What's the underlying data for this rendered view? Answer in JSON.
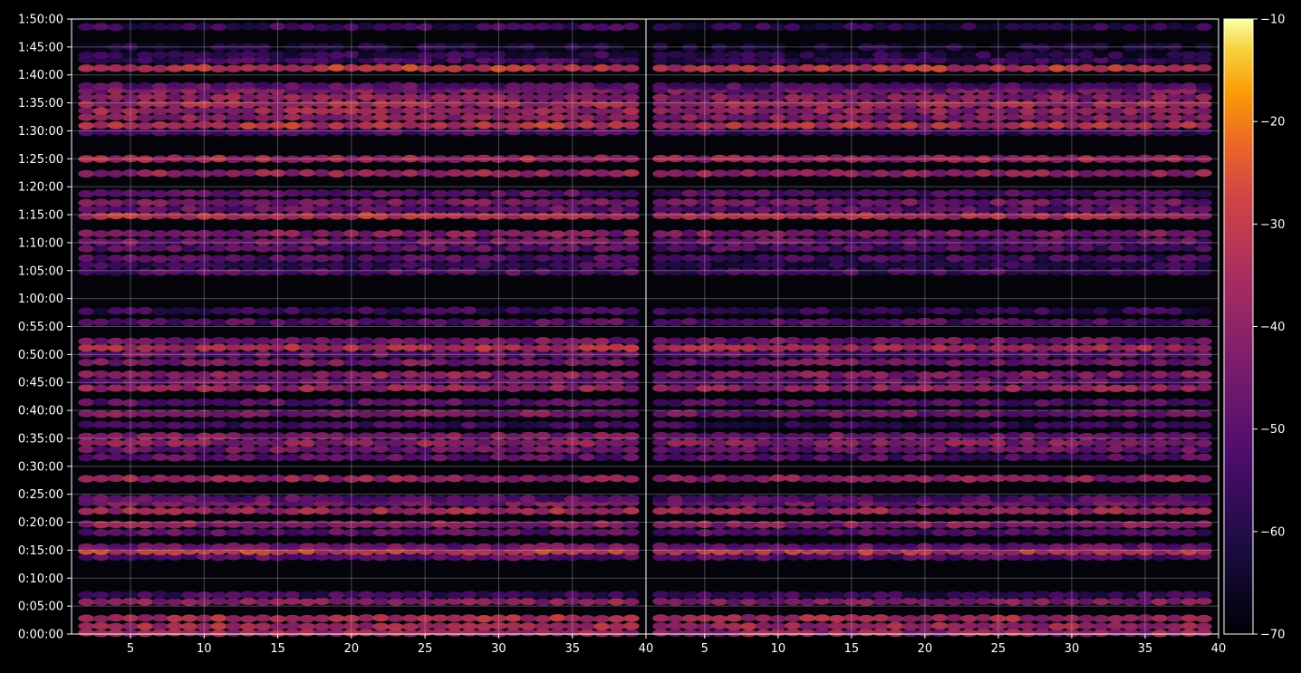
{
  "chart_data": {
    "type": "heatmap",
    "title": "",
    "xlabel": "",
    "ylabel": "",
    "background": "#000000",
    "grid": true,
    "colormap": "inferno",
    "panels": [
      {
        "name": "",
        "xlim": [
          1,
          40
        ],
        "x_ticks": [
          5,
          10,
          15,
          20,
          25,
          30,
          35,
          40
        ]
      },
      {
        "name": "",
        "xlim": [
          1,
          40
        ],
        "x_ticks": [
          5,
          10,
          15,
          20,
          25,
          30,
          35,
          40
        ]
      }
    ],
    "ylim_minutes": [
      0,
      110
    ],
    "y_ticks": [
      {
        "min": 0,
        "label": "0:00:00"
      },
      {
        "min": 5,
        "label": "0:05:00"
      },
      {
        "min": 10,
        "label": "0:10:00"
      },
      {
        "min": 15,
        "label": "0:15:00"
      },
      {
        "min": 20,
        "label": "0:20:00"
      },
      {
        "min": 25,
        "label": "0:25:00"
      },
      {
        "min": 30,
        "label": "0:30:00"
      },
      {
        "min": 35,
        "label": "0:35:00"
      },
      {
        "min": 40,
        "label": "0:40:00"
      },
      {
        "min": 45,
        "label": "0:45:00"
      },
      {
        "min": 50,
        "label": "0:50:00"
      },
      {
        "min": 55,
        "label": "0:55:00"
      },
      {
        "min": 60,
        "label": "1:00:00"
      },
      {
        "min": 65,
        "label": "1:05:00"
      },
      {
        "min": 70,
        "label": "1:10:00"
      },
      {
        "min": 75,
        "label": "1:15:00"
      },
      {
        "min": 80,
        "label": "1:20:00"
      },
      {
        "min": 85,
        "label": "1:25:00"
      },
      {
        "min": 90,
        "label": "1:30:00"
      },
      {
        "min": 95,
        "label": "1:35:00"
      },
      {
        "min": 100,
        "label": "1:40:00"
      },
      {
        "min": 105,
        "label": "1:45:00"
      },
      {
        "min": 110,
        "label": "1:50:00"
      }
    ],
    "colorbar": {
      "min": -70,
      "max": -10,
      "ticks": [
        -10,
        -20,
        -30,
        -40,
        -50,
        -60,
        -70
      ],
      "tick_labels": [
        "−10",
        "−20",
        "−30",
        "−40",
        "−50",
        "−60",
        "−70"
      ]
    },
    "bands": [
      {
        "t": 0.2,
        "level": -37
      },
      {
        "t": 1.4,
        "level": -35
      },
      {
        "t": 2.8,
        "level": -34
      },
      {
        "t": 5.8,
        "level": -40
      },
      {
        "t": 7.0,
        "level": -55
      },
      {
        "t": 13.8,
        "level": -50
      },
      {
        "t": 14.8,
        "level": -30
      },
      {
        "t": 15.6,
        "level": -46
      },
      {
        "t": 18.2,
        "level": -50
      },
      {
        "t": 19.6,
        "level": -40
      },
      {
        "t": 22.0,
        "level": -36
      },
      {
        "t": 23.4,
        "level": -44
      },
      {
        "t": 24.2,
        "level": -50
      },
      {
        "t": 27.8,
        "level": -38
      },
      {
        "t": 31.6,
        "level": -50
      },
      {
        "t": 33.0,
        "level": -46
      },
      {
        "t": 34.2,
        "level": -40
      },
      {
        "t": 35.4,
        "level": -44
      },
      {
        "t": 37.4,
        "level": -55
      },
      {
        "t": 39.4,
        "level": -44
      },
      {
        "t": 41.4,
        "level": -50
      },
      {
        "t": 44.0,
        "level": -38
      },
      {
        "t": 45.2,
        "level": -48
      },
      {
        "t": 46.4,
        "level": -40
      },
      {
        "t": 48.6,
        "level": -44
      },
      {
        "t": 50.0,
        "level": -48
      },
      {
        "t": 51.2,
        "level": -34
      },
      {
        "t": 52.4,
        "level": -44
      },
      {
        "t": 55.8,
        "level": -50
      },
      {
        "t": 57.8,
        "level": -56
      },
      {
        "t": 64.8,
        "level": -52
      },
      {
        "t": 66.0,
        "level": -56
      },
      {
        "t": 67.2,
        "level": -52
      },
      {
        "t": 69.0,
        "level": -50
      },
      {
        "t": 70.2,
        "level": -46
      },
      {
        "t": 71.6,
        "level": -42
      },
      {
        "t": 74.8,
        "level": -33
      },
      {
        "t": 76.0,
        "level": -48
      },
      {
        "t": 77.2,
        "level": -44
      },
      {
        "t": 78.8,
        "level": -50
      },
      {
        "t": 82.4,
        "level": -38
      },
      {
        "t": 85.0,
        "level": -36
      },
      {
        "t": 89.8,
        "level": -52
      },
      {
        "t": 91.0,
        "level": -32
      },
      {
        "t": 92.4,
        "level": -40
      },
      {
        "t": 93.6,
        "level": -38
      },
      {
        "t": 94.8,
        "level": -36
      },
      {
        "t": 96.0,
        "level": -40
      },
      {
        "t": 97.2,
        "level": -42
      },
      {
        "t": 98.0,
        "level": -50
      },
      {
        "t": 101.2,
        "level": -30
      },
      {
        "t": 102.6,
        "level": -55
      },
      {
        "t": 103.6,
        "level": -58
      },
      {
        "t": 105.0,
        "level": -62
      },
      {
        "t": 108.6,
        "level": -56
      }
    ]
  }
}
